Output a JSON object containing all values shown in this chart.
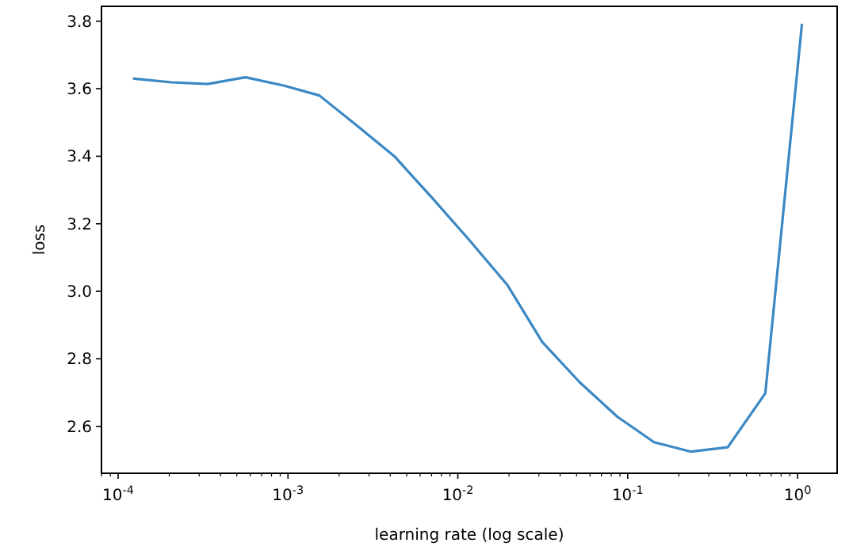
{
  "chart_data": {
    "type": "line",
    "xlabel": "learning rate (log scale)",
    "ylabel": "loss",
    "log": "x",
    "xlim": [
      7.98e-05,
      1.71
    ],
    "ylim": [
      2.461,
      3.844
    ],
    "xticks": [
      {
        "value": 0.0001,
        "label": "10$^{-4}$"
      },
      {
        "value": 0.001,
        "label": "10$^{-3}$"
      },
      {
        "value": 0.01,
        "label": "10$^{-2}$"
      },
      {
        "value": 0.1,
        "label": "10$^{-1}$"
      },
      {
        "value": 1,
        "label": "10$^{0}$"
      }
    ],
    "yticks": [
      {
        "value": 2.6,
        "label": "2.6"
      },
      {
        "value": 2.8,
        "label": "2.8"
      },
      {
        "value": 3.0,
        "label": "3.0"
      },
      {
        "value": 3.2,
        "label": "3.2"
      },
      {
        "value": 3.4,
        "label": "3.4"
      },
      {
        "value": 3.6,
        "label": "3.6"
      },
      {
        "value": 3.8,
        "label": "3.8"
      }
    ],
    "x": [
      0.000124,
      0.000206,
      0.000337,
      0.000562,
      0.00095,
      0.00153,
      0.00254,
      0.00423,
      0.00705,
      0.01175,
      0.01955,
      0.0314,
      0.0523,
      0.0871,
      0.143,
      0.236,
      0.388,
      0.646,
      1.06
    ],
    "series": [
      {
        "color": "#3b88c4",
        "values": [
          3.63,
          3.619,
          3.614,
          3.634,
          3.609,
          3.58,
          3.491,
          3.4,
          3.277,
          3.15,
          3.019,
          2.85,
          2.73,
          2.628,
          2.553,
          2.525,
          2.538,
          2.698,
          3.789
        ]
      }
    ],
    "grid": false,
    "marker": "none",
    "line_style": "solid"
  }
}
